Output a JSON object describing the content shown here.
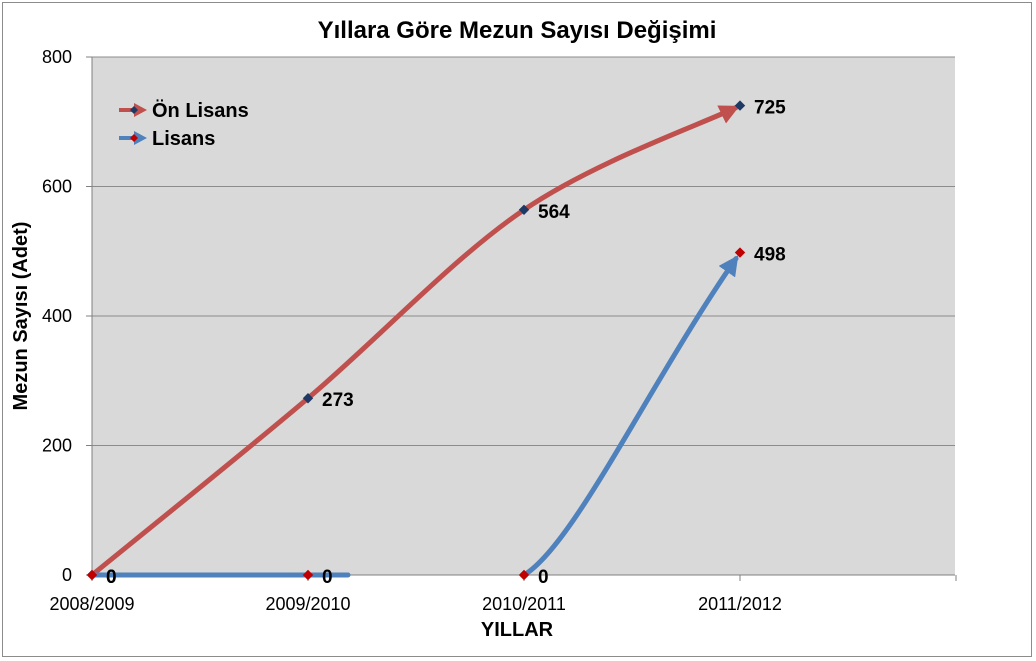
{
  "chart_data": {
    "type": "line",
    "title": "Yıllara Göre Mezun Sayısı Değişimi",
    "xlabel": "YILLAR",
    "ylabel": "Mezun Sayısı (Adet)",
    "categories": [
      "2008/2009",
      "2009/2010",
      "2010/2011",
      "2011/2012"
    ],
    "ylim": [
      0,
      800
    ],
    "yticks": [
      0,
      200,
      400,
      600,
      800
    ],
    "grid": true,
    "legend_position": "top-left",
    "series": [
      {
        "name": "Ön Lisans",
        "values": [
          0,
          273,
          564,
          725
        ],
        "labels": [
          "0",
          "273",
          "564",
          "725"
        ],
        "color": "#c0504d",
        "marker_color": "#1f3864"
      },
      {
        "name": "Lisans",
        "values": [
          0,
          0,
          0,
          498
        ],
        "labels": [
          "0",
          "0",
          "0",
          "498"
        ],
        "color": "#4f81bd",
        "marker_color": "#c00000"
      }
    ],
    "plot_background": "#d9d9d9",
    "gridline_color": "#8c8c8c"
  }
}
